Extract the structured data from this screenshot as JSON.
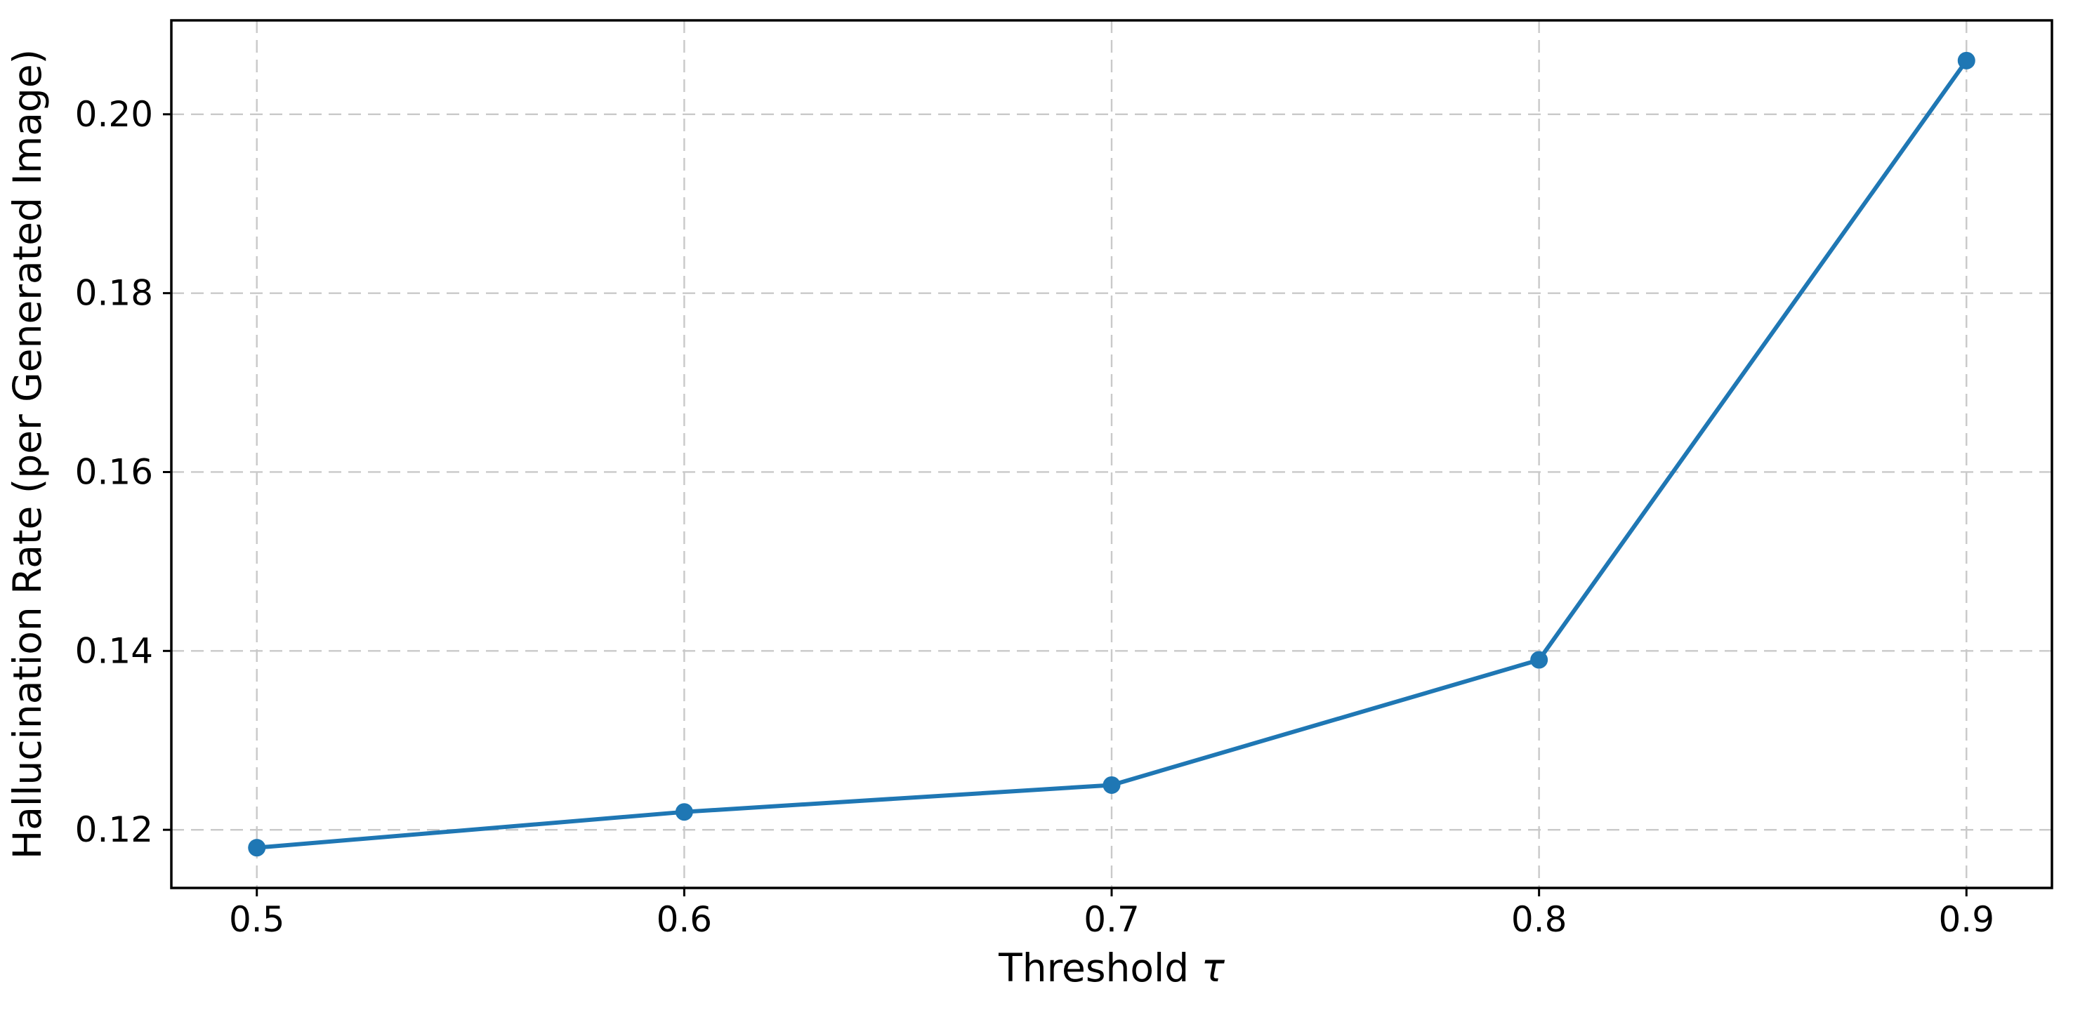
{
  "chart_data": {
    "type": "line",
    "title": "",
    "xlabel": "Threshold τ",
    "ylabel": "Hallucination Rate (per Generated Image)",
    "x": [
      0.5,
      0.6,
      0.7,
      0.8,
      0.9
    ],
    "series": [
      {
        "name": "Hallucination Rate",
        "values": [
          0.118,
          0.122,
          0.125,
          0.139,
          0.206
        ]
      }
    ],
    "xlim": [
      0.48,
      0.92
    ],
    "ylim": [
      0.1135,
      0.2105
    ],
    "xticks": {
      "values": [
        0.5,
        0.6,
        0.7,
        0.8,
        0.9
      ],
      "labels": [
        "0.5",
        "0.6",
        "0.7",
        "0.8",
        "0.9"
      ]
    },
    "yticks": {
      "values": [
        0.12,
        0.14,
        0.16,
        0.18,
        0.2
      ],
      "labels": [
        "0.12",
        "0.14",
        "0.16",
        "0.18",
        "0.20"
      ]
    },
    "grid": true,
    "legend_position": "none",
    "line_color": "#1f77b4",
    "marker": "circle",
    "marker_radius": 12.5,
    "line_width": 6,
    "grid_color": "#c9c9c9",
    "spine_color": "#000000",
    "background": "#ffffff"
  }
}
